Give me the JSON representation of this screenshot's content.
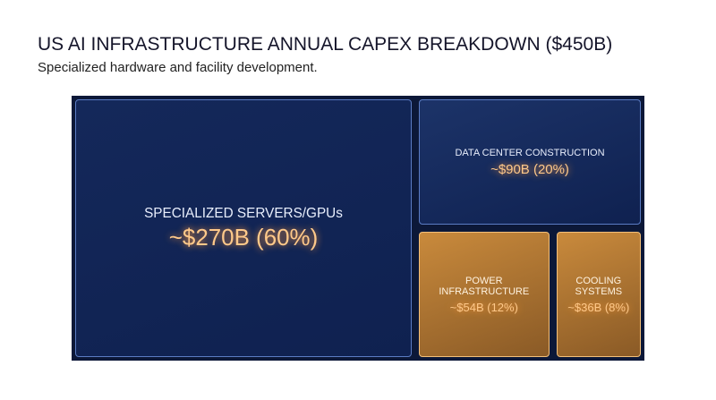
{
  "chart_data": {
    "type": "treemap",
    "title": "US AI INFRASTRUCTURE ANNUAL CAPEX BREAKDOWN ($450B)",
    "subtitle": "Specialized hardware and facility development.",
    "categories": [
      "SPECIALIZED SERVERS/GPUs",
      "DATA CENTER CONSTRUCTION",
      "POWER INFRASTRUCTURE",
      "COOLING SYSTEMS"
    ],
    "values": [
      270,
      90,
      54,
      36
    ],
    "value_labels": [
      "~$270B (60%)",
      "~$90B (20%)",
      "~$54B (12%)",
      "~$36B (8%)"
    ],
    "colors": [
      "#14285a",
      "#1c3368",
      "#c98a3c",
      "#c98a3c"
    ]
  }
}
